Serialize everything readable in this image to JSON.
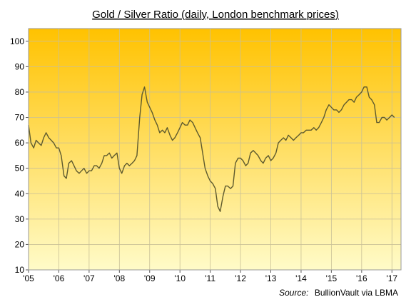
{
  "chart_data": {
    "type": "line",
    "title": "Gold / Silver Ratio (daily, London benchmark prices)",
    "source_label": "Source:",
    "source_text": "BullionVault via LBMA",
    "xlabel": "",
    "ylabel": "",
    "x_tick_labels": [
      "'05",
      "'06",
      "'07",
      "'08",
      "'09",
      "'10",
      "'11",
      "'12",
      "'13",
      "'14",
      "'15",
      "'16",
      "'17"
    ],
    "x_range": [
      2005.0,
      2017.3
    ],
    "ylim": [
      10,
      105
    ],
    "y_ticks": [
      10,
      20,
      30,
      40,
      50,
      60,
      70,
      80,
      90,
      100
    ],
    "grid": true,
    "background_gradient": {
      "top": "#ffc200",
      "bottom": "#fffbc8"
    },
    "line_color": "#5e5a2e",
    "series": [
      {
        "x": [
          2005.0,
          2005.08,
          2005.17,
          2005.25,
          2005.33,
          2005.42,
          2005.5,
          2005.58,
          2005.67,
          2005.75,
          2005.83,
          2005.92,
          2006.0,
          2006.08,
          2006.17,
          2006.25,
          2006.33,
          2006.42,
          2006.5,
          2006.58,
          2006.67,
          2006.75,
          2006.83,
          2006.92,
          2007.0,
          2007.08,
          2007.17,
          2007.25,
          2007.33,
          2007.42,
          2007.5,
          2007.58,
          2007.67,
          2007.75,
          2007.83,
          2007.92,
          2008.0,
          2008.08,
          2008.17,
          2008.25,
          2008.33,
          2008.42,
          2008.5,
          2008.58,
          2008.67,
          2008.75,
          2008.83,
          2008.92,
          2009.0,
          2009.08,
          2009.17,
          2009.25,
          2009.33,
          2009.42,
          2009.5,
          2009.58,
          2009.67,
          2009.75,
          2009.83,
          2009.92,
          2010.0,
          2010.08,
          2010.17,
          2010.25,
          2010.33,
          2010.42,
          2010.5,
          2010.58,
          2010.67,
          2010.75,
          2010.83,
          2010.92,
          2011.0,
          2011.08,
          2011.17,
          2011.25,
          2011.33,
          2011.42,
          2011.5,
          2011.58,
          2011.67,
          2011.75,
          2011.83,
          2011.92,
          2012.0,
          2012.08,
          2012.17,
          2012.25,
          2012.33,
          2012.42,
          2012.5,
          2012.58,
          2012.67,
          2012.75,
          2012.83,
          2012.92,
          2013.0,
          2013.08,
          2013.17,
          2013.25,
          2013.33,
          2013.42,
          2013.5,
          2013.58,
          2013.67,
          2013.75,
          2013.83,
          2013.92,
          2014.0,
          2014.08,
          2014.17,
          2014.25,
          2014.33,
          2014.42,
          2014.5,
          2014.58,
          2014.67,
          2014.75,
          2014.83,
          2014.92,
          2015.0,
          2015.08,
          2015.17,
          2015.25,
          2015.33,
          2015.42,
          2015.5,
          2015.58,
          2015.67,
          2015.75,
          2015.83,
          2015.92,
          2016.0,
          2016.08,
          2016.17,
          2016.25,
          2016.33,
          2016.42,
          2016.5,
          2016.58,
          2016.67,
          2016.75,
          2016.83,
          2016.92,
          2017.0,
          2017.08
        ],
        "values": [
          67,
          60,
          58,
          61,
          60,
          59,
          62,
          64,
          62,
          61,
          60,
          58,
          58,
          55,
          47,
          46,
          52,
          53,
          51,
          49,
          48,
          49,
          50,
          48,
          49,
          49,
          51,
          51,
          50,
          52,
          55,
          55,
          56,
          54,
          55,
          56,
          50,
          48,
          51,
          52,
          51,
          52,
          53,
          55,
          70,
          79,
          82,
          76,
          74,
          72,
          69,
          67,
          64,
          65,
          64,
          66,
          63,
          61,
          62,
          64,
          66,
          68,
          67,
          67,
          69,
          68,
          66,
          64,
          62,
          56,
          50,
          47,
          45,
          44,
          42,
          35,
          33,
          39,
          43,
          43,
          42,
          43,
          52,
          54,
          54,
          53,
          51,
          52,
          56,
          57,
          56,
          55,
          53,
          52,
          54,
          55,
          53,
          54,
          56,
          60,
          61,
          62,
          61,
          63,
          62,
          61,
          62,
          63,
          64,
          64,
          65,
          65,
          65,
          66,
          65,
          66,
          68,
          70,
          73,
          75,
          74,
          73,
          73,
          72,
          73,
          75,
          76,
          77,
          77,
          76,
          78,
          79,
          80,
          82,
          82,
          78,
          77,
          75,
          68,
          68,
          70,
          70,
          69,
          70,
          71,
          70
        ]
      }
    ]
  }
}
